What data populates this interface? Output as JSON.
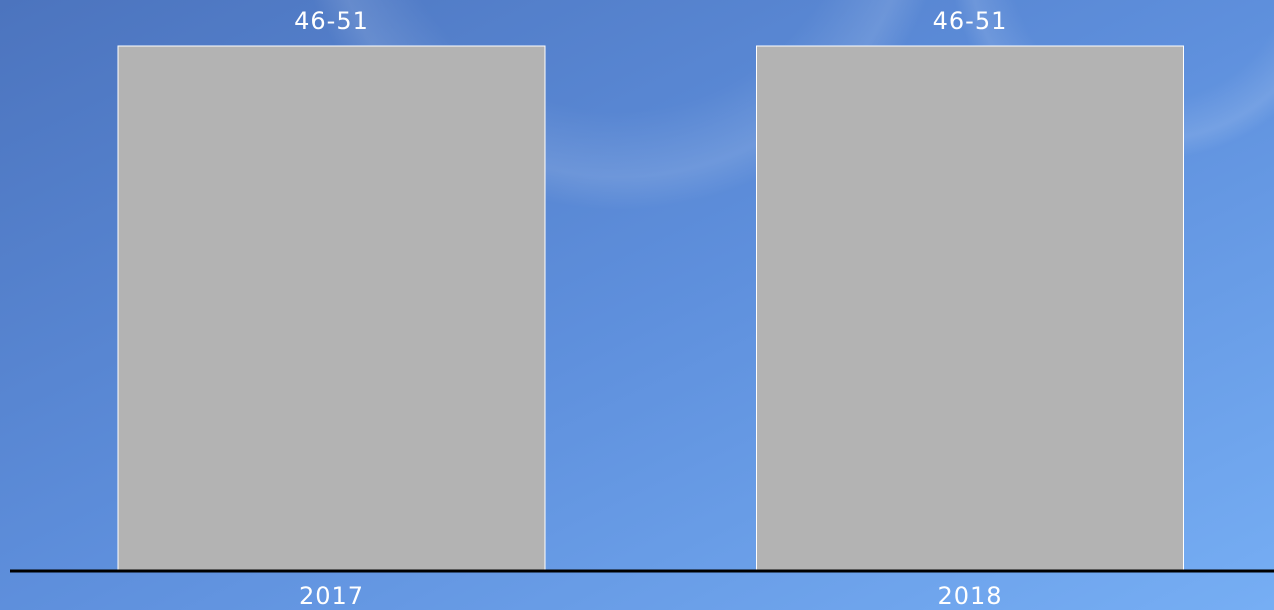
{
  "chart_data": {
    "type": "bar",
    "categories": [
      "2017",
      "2018"
    ],
    "values": [
      51,
      51
    ],
    "value_labels": [
      "46-51",
      "46-51"
    ],
    "color": "#b3b3b3"
  }
}
